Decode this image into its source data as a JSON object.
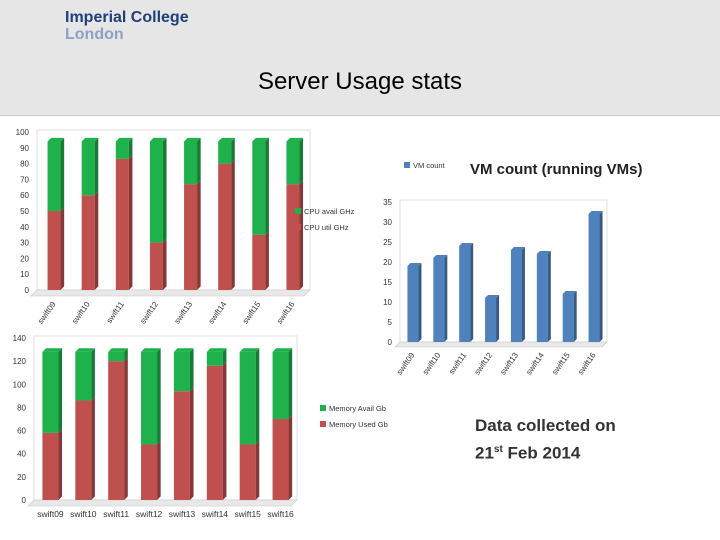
{
  "header": {
    "logo_line1": "Imperial College",
    "logo_line2": "London",
    "title": "Server Usage stats"
  },
  "note": {
    "line1": "Data collected on",
    "day": "21",
    "day_suffix": "st",
    "rest": " Feb 2014"
  },
  "colors": {
    "green": "#1fb14b",
    "red": "#c0504d",
    "blue": "#4f81bd"
  },
  "chart_data": [
    {
      "id": "cpu",
      "type": "bar",
      "stacked": true,
      "title": "",
      "categories": [
        "swift09",
        "swift10",
        "swift11",
        "swift12",
        "swift13",
        "swift14",
        "swift15",
        "swift16"
      ],
      "series": [
        {
          "name": "CPU util GHz",
          "color": "#c0504d",
          "values": [
            50,
            60,
            83,
            30,
            67,
            80,
            35,
            67
          ]
        },
        {
          "name": "CPU avail GHz",
          "color": "#1fb14b",
          "values": [
            44,
            34,
            11,
            64,
            27,
            14,
            59,
            27
          ]
        }
      ],
      "ylim": [
        0,
        100
      ],
      "yticks": [
        0,
        10,
        20,
        30,
        40,
        50,
        60,
        70,
        80,
        90,
        100
      ],
      "legend": "right"
    },
    {
      "id": "mem",
      "type": "bar",
      "stacked": true,
      "title": "",
      "categories": [
        "swift09",
        "swift10",
        "swift11",
        "swift12",
        "swift13",
        "swift14",
        "swift15",
        "swift16"
      ],
      "series": [
        {
          "name": "Memory Used Gb",
          "color": "#c0504d",
          "values": [
            58,
            86,
            120,
            48,
            94,
            116,
            48,
            70
          ]
        },
        {
          "name": "Memory Avail Gb",
          "color": "#1fb14b",
          "values": [
            70,
            42,
            8,
            80,
            34,
            12,
            80,
            58
          ]
        }
      ],
      "ylim": [
        0,
        140
      ],
      "yticks": [
        0,
        20,
        40,
        60,
        80,
        100,
        120,
        140
      ],
      "legend": "right"
    },
    {
      "id": "vm",
      "type": "bar",
      "title": "VM count (running VMs)",
      "categories": [
        "swift09",
        "swift10",
        "swift11",
        "swift12",
        "swift13",
        "swift14",
        "swift15",
        "swift16"
      ],
      "series": [
        {
          "name": "VM count",
          "color": "#4f81bd",
          "values": [
            19,
            21,
            24,
            11,
            23,
            22,
            12,
            32
          ]
        }
      ],
      "ylim": [
        0,
        35
      ],
      "yticks": [
        0,
        5,
        10,
        15,
        20,
        25,
        30,
        35
      ],
      "legend": "top-left"
    }
  ]
}
